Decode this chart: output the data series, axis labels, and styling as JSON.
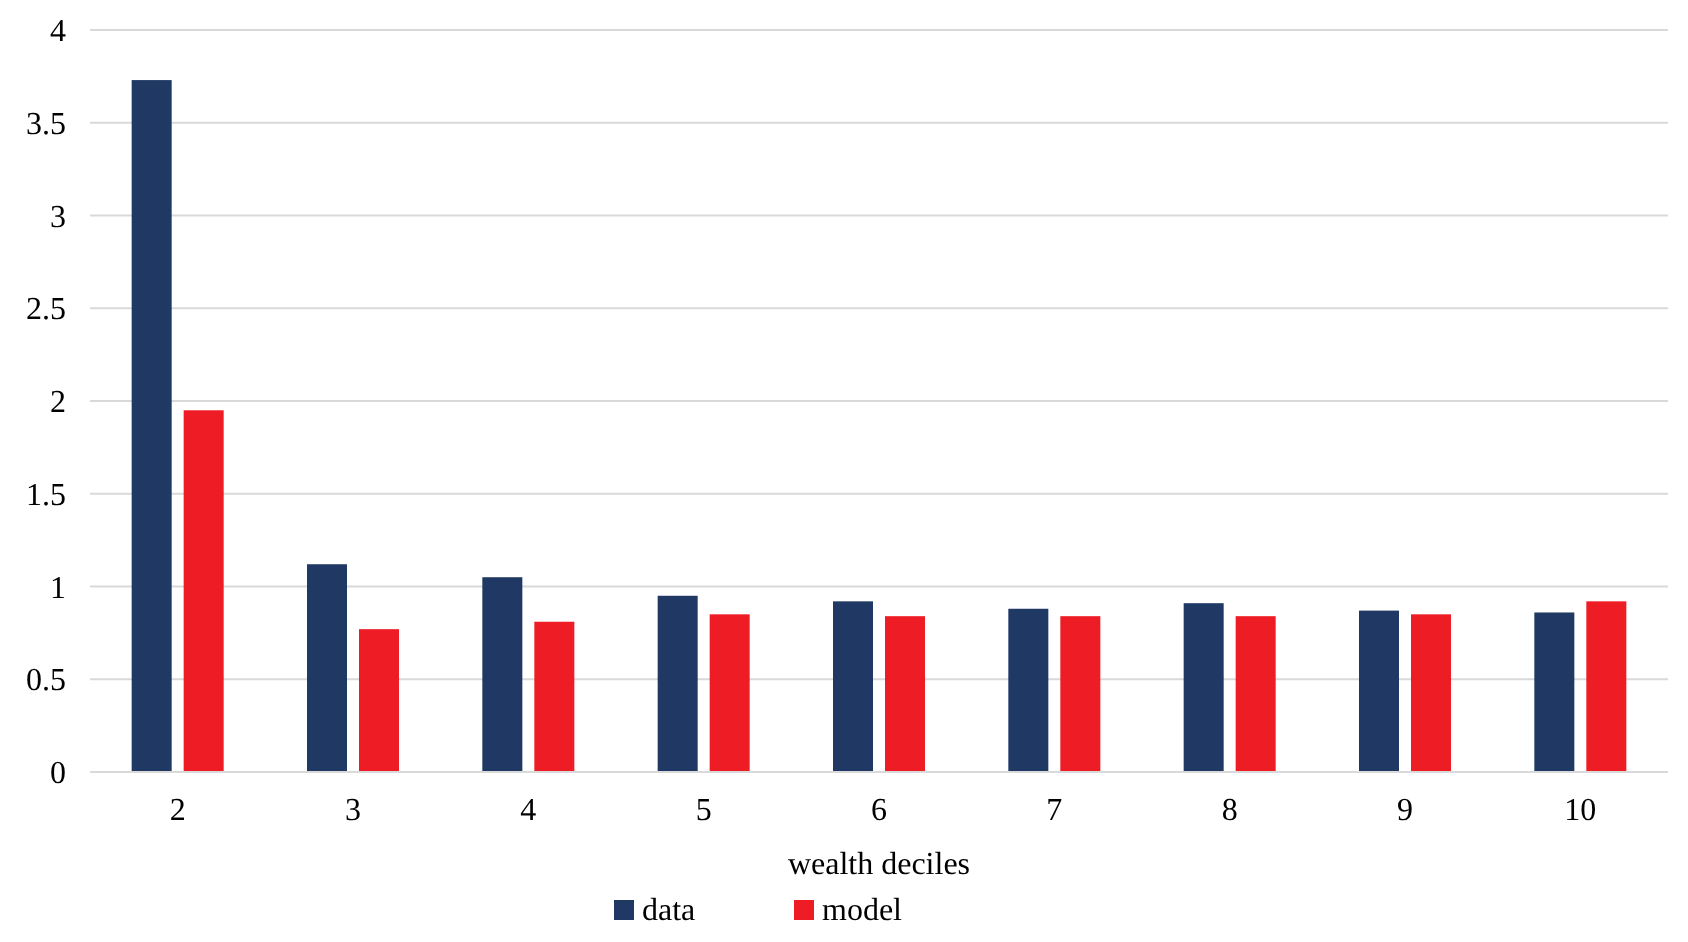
{
  "chart_data": {
    "type": "bar",
    "xlabel": "wealth deciles",
    "categories": [
      "2",
      "3",
      "4",
      "5",
      "6",
      "7",
      "8",
      "9",
      "10"
    ],
    "series": [
      {
        "name": "data",
        "color": "#1f3864",
        "values": [
          3.73,
          1.12,
          1.05,
          0.95,
          0.92,
          0.88,
          0.91,
          0.87,
          0.86
        ]
      },
      {
        "name": "model",
        "color": "#ee1c25",
        "values": [
          1.95,
          0.77,
          0.81,
          0.85,
          0.84,
          0.84,
          0.84,
          0.85,
          0.92
        ]
      }
    ],
    "ylim": [
      0,
      4
    ],
    "yticks": [
      0,
      0.5,
      1,
      1.5,
      2,
      2.5,
      3,
      3.5,
      4
    ],
    "grid": "y",
    "legend": "bottom"
  }
}
